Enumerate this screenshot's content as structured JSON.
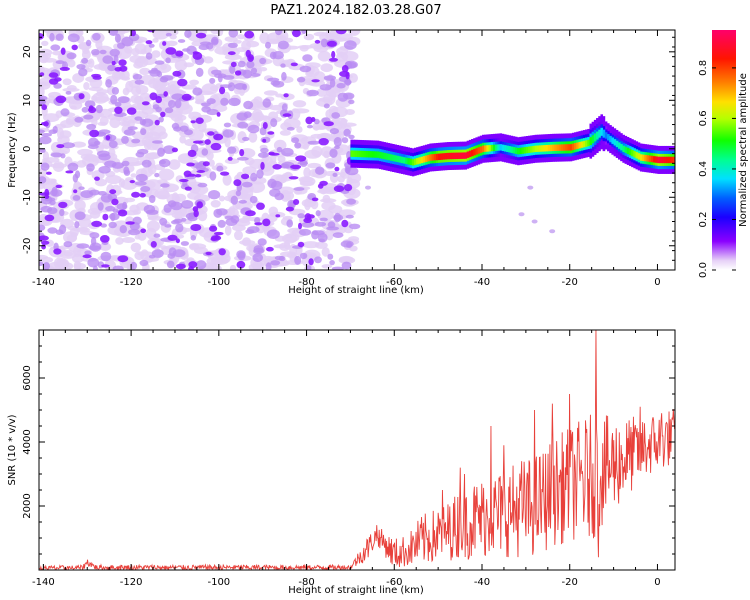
{
  "chart_data": [
    {
      "type": "heatmap",
      "title": "PAZ1.2024.182.03.28.G07",
      "xlabel": "Height of straight line (km)",
      "ylabel": "Frequency (Hz)",
      "xlim": [
        -141,
        4
      ],
      "ylim": [
        -25,
        24.5
      ],
      "xticks": [
        -140,
        -120,
        -100,
        -80,
        -60,
        -40,
        -20,
        0
      ],
      "yticks": [
        -20,
        -10,
        0,
        10,
        20
      ],
      "colorbar": {
        "label": "Normalized spectral amplitude",
        "range": [
          0,
          0.95
        ],
        "ticks": [
          0.0,
          0.2,
          0.4,
          0.6,
          0.8
        ],
        "colormap": "gist_rainbow_r"
      },
      "noise_region_x": [
        -141,
        -69
      ],
      "signal_ridge": [
        {
          "x": -70,
          "y": -1.0
        },
        {
          "x": -64,
          "y": -1.2
        },
        {
          "x": -60,
          "y": -2.0
        },
        {
          "x": -56,
          "y": -2.8
        },
        {
          "x": -52,
          "y": -1.8
        },
        {
          "x": -48,
          "y": -1.5
        },
        {
          "x": -44,
          "y": -1.4
        },
        {
          "x": -40,
          "y": 0.0
        },
        {
          "x": -36,
          "y": 0.3
        },
        {
          "x": -32,
          "y": -0.5
        },
        {
          "x": -28,
          "y": 0.0
        },
        {
          "x": -24,
          "y": 0.2
        },
        {
          "x": -20,
          "y": 0.3
        },
        {
          "x": -16,
          "y": 1.2
        },
        {
          "x": -13,
          "y": 3.5
        },
        {
          "x": -11,
          "y": 2.0
        },
        {
          "x": -8,
          "y": 0.0
        },
        {
          "x": -4,
          "y": -1.8
        },
        {
          "x": 0,
          "y": -2.3
        },
        {
          "x": 4,
          "y": -2.3
        }
      ],
      "ridge_amplitude": [
        {
          "x": -70,
          "v": 0.55
        },
        {
          "x": -64,
          "v": 0.5
        },
        {
          "x": -58,
          "v": 0.45
        },
        {
          "x": -50,
          "v": 0.85
        },
        {
          "x": -44,
          "v": 0.9
        },
        {
          "x": -40,
          "v": 0.75
        },
        {
          "x": -36,
          "v": 0.35
        },
        {
          "x": -32,
          "v": 0.5
        },
        {
          "x": -28,
          "v": 0.6
        },
        {
          "x": -24,
          "v": 0.7
        },
        {
          "x": -20,
          "v": 0.8
        },
        {
          "x": -16,
          "v": 0.55
        },
        {
          "x": -12,
          "v": 0.3
        },
        {
          "x": -8,
          "v": 0.45
        },
        {
          "x": -4,
          "v": 0.65
        },
        {
          "x": 0,
          "v": 0.9
        },
        {
          "x": 4,
          "v": 0.8
        }
      ]
    },
    {
      "type": "line",
      "xlabel": "Height of straight line (km)",
      "ylabel": "SNR (10 * v/v)",
      "xlim": [
        -141,
        4
      ],
      "ylim": [
        0,
        7500
      ],
      "xticks": [
        -140,
        -120,
        -100,
        -80,
        -60,
        -40,
        -20,
        0
      ],
      "yticks": [
        2000,
        4000,
        6000
      ],
      "color": "#e8403a",
      "series": [
        {
          "name": "",
          "envelope": [
            {
              "x": -141,
              "base": 60,
              "amp": 70
            },
            {
              "x": -131,
              "base": 70,
              "amp": 80
            },
            {
              "x": -130,
              "base": 250,
              "amp": 120
            },
            {
              "x": -128,
              "base": 80,
              "amp": 80
            },
            {
              "x": -70,
              "base": 80,
              "amp": 80
            },
            {
              "x": -66,
              "base": 700,
              "amp": 400
            },
            {
              "x": -64,
              "base": 1100,
              "amp": 300
            },
            {
              "x": -60,
              "base": 500,
              "amp": 500
            },
            {
              "x": -57,
              "base": 600,
              "amp": 500
            },
            {
              "x": -54,
              "base": 900,
              "amp": 800
            },
            {
              "x": -48,
              "base": 1200,
              "amp": 900
            },
            {
              "x": -44,
              "base": 1500,
              "amp": 1200
            },
            {
              "x": -38,
              "base": 1700,
              "amp": 1300
            },
            {
              "x": -32,
              "base": 1900,
              "amp": 1500
            },
            {
              "x": -28,
              "base": 2000,
              "amp": 1600
            },
            {
              "x": -24,
              "base": 2400,
              "amp": 1700
            },
            {
              "x": -20,
              "base": 2700,
              "amp": 1800
            },
            {
              "x": -15,
              "base": 2900,
              "amp": 2000
            },
            {
              "x": -10,
              "base": 3300,
              "amp": 1500
            },
            {
              "x": -6,
              "base": 3600,
              "amp": 1200
            },
            {
              "x": -2,
              "base": 3900,
              "amp": 1000
            },
            {
              "x": 4,
              "base": 4200,
              "amp": 900
            }
          ],
          "spikes": [
            {
              "x": -64,
              "y": 1400
            },
            {
              "x": -49,
              "y": 2500
            },
            {
              "x": -45,
              "y": 3200
            },
            {
              "x": -44,
              "y": 3000
            },
            {
              "x": -38,
              "y": 4500
            },
            {
              "x": -35,
              "y": 3900
            },
            {
              "x": -31,
              "y": 3400
            },
            {
              "x": -28,
              "y": 5000
            },
            {
              "x": -24,
              "y": 5200
            },
            {
              "x": -20,
              "y": 5500
            },
            {
              "x": -14,
              "y": 7500
            },
            {
              "x": -13.5,
              "y": 400
            },
            {
              "x": -4,
              "y": 5100
            },
            {
              "x": 1,
              "y": 4900
            },
            {
              "x": 3.5,
              "y": 4700
            }
          ]
        }
      ]
    }
  ]
}
